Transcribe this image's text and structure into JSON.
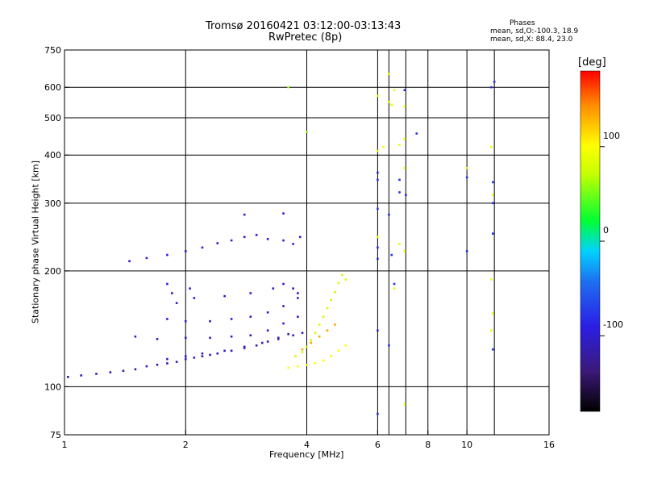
{
  "chart_data": {
    "type": "scatter",
    "title": "Tromsø 20160421 03:12:00-03:13:43",
    "subtitle": "RwPretec (8p)",
    "xlabel": "Frequency [MHz]",
    "ylabel": "Stationary phase Virtual Height [km]",
    "x_scale": "log",
    "y_scale": "log",
    "xlim": [
      1,
      16
    ],
    "ylim": [
      75,
      750
    ],
    "x_ticks": [
      1,
      2,
      4,
      6,
      8,
      10,
      16
    ],
    "x_tick_labels": [
      "1",
      "2",
      "4",
      "6",
      "8",
      "10",
      "16"
    ],
    "x_grid": [
      2,
      4,
      6,
      8,
      10
    ],
    "x_grid_extra": [
      6.4,
      7.05,
      11.7
    ],
    "y_ticks": [
      75,
      100,
      200,
      300,
      400,
      500,
      600,
      750
    ],
    "y_tick_labels": [
      "75",
      "100",
      "200",
      "300",
      "400",
      "500",
      "600",
      "750"
    ],
    "y_grid": [
      100,
      200,
      300,
      400,
      500,
      600
    ],
    "grid": true,
    "legend_title": "Phases",
    "legend_lines": [
      "mean, sd,O:-100.3, 18.9",
      "mean, sd,X: 88.4, 23.0"
    ],
    "colorbar": {
      "label": "[deg]",
      "min": -180,
      "max": 180,
      "ticks": [
        100,
        0,
        -100
      ],
      "tick_labels": [
        "100",
        "0",
        "-100"
      ]
    },
    "traces": [
      {
        "name": "",
        "phase": -110,
        "points": [
          [
            1.02,
            106
          ],
          [
            1.1,
            107
          ],
          [
            1.2,
            108
          ],
          [
            1.3,
            109
          ],
          [
            1.4,
            110
          ],
          [
            1.5,
            111
          ],
          [
            1.6,
            113
          ],
          [
            1.7,
            114
          ],
          [
            1.8,
            115
          ],
          [
            1.9,
            116
          ],
          [
            2.0,
            118
          ],
          [
            2.1,
            119
          ],
          [
            2.2,
            120
          ],
          [
            2.3,
            121
          ],
          [
            2.4,
            122
          ],
          [
            2.6,
            124
          ],
          [
            2.8,
            126
          ],
          [
            3.0,
            128
          ],
          [
            3.2,
            131
          ],
          [
            3.4,
            134
          ],
          [
            3.6,
            137
          ]
        ]
      },
      {
        "name": "",
        "phase": -105,
        "points": [
          [
            1.8,
            118
          ],
          [
            2.0,
            120
          ],
          [
            2.2,
            122
          ],
          [
            2.5,
            124
          ],
          [
            2.8,
            127
          ],
          [
            3.1,
            130
          ],
          [
            3.4,
            133
          ],
          [
            3.7,
            136
          ],
          [
            3.9,
            138
          ]
        ]
      },
      {
        "name": "",
        "phase": -100,
        "points": [
          [
            1.5,
            135
          ],
          [
            1.7,
            133
          ],
          [
            2.0,
            134
          ],
          [
            2.3,
            134
          ],
          [
            2.6,
            135
          ],
          [
            2.9,
            136
          ],
          [
            3.2,
            140
          ],
          [
            3.5,
            146
          ],
          [
            3.8,
            152
          ]
        ]
      },
      {
        "name": "",
        "phase": -100,
        "points": [
          [
            1.8,
            150
          ],
          [
            2.0,
            148
          ],
          [
            2.3,
            148
          ],
          [
            2.6,
            150
          ],
          [
            2.9,
            152
          ],
          [
            3.2,
            156
          ],
          [
            3.5,
            162
          ],
          [
            3.8,
            170
          ]
        ]
      },
      {
        "name": "",
        "phase": -100,
        "points": [
          [
            1.8,
            185
          ],
          [
            1.85,
            175
          ],
          [
            1.9,
            165
          ],
          [
            2.05,
            180
          ],
          [
            2.1,
            170
          ],
          [
            2.5,
            172
          ],
          [
            2.9,
            175
          ],
          [
            3.3,
            180
          ],
          [
            3.5,
            185
          ],
          [
            3.7,
            180
          ],
          [
            3.8,
            175
          ]
        ]
      },
      {
        "name": "",
        "phase": -95,
        "points": [
          [
            1.45,
            212
          ],
          [
            1.6,
            216
          ],
          [
            1.8,
            220
          ],
          [
            2.0,
            225
          ],
          [
            2.2,
            230
          ],
          [
            2.4,
            236
          ],
          [
            2.6,
            240
          ],
          [
            2.8,
            245
          ],
          [
            3.0,
            248
          ],
          [
            3.2,
            242
          ],
          [
            3.5,
            240
          ],
          [
            3.7,
            235
          ],
          [
            3.85,
            245
          ]
        ]
      },
      {
        "name": "",
        "phase": -100,
        "points": [
          [
            2.8,
            280
          ],
          [
            3.5,
            282
          ]
        ]
      },
      {
        "name": "",
        "phase": 75,
        "points": [
          [
            3.75,
            120
          ],
          [
            3.9,
            123
          ],
          [
            4.0,
            127
          ],
          [
            4.1,
            132
          ],
          [
            4.2,
            138
          ],
          [
            4.3,
            145
          ],
          [
            4.4,
            152
          ],
          [
            4.5,
            160
          ],
          [
            4.6,
            168
          ],
          [
            4.7,
            176
          ],
          [
            4.8,
            186
          ],
          [
            4.9,
            195
          ],
          [
            5.0,
            190
          ]
        ]
      },
      {
        "name": "",
        "phase": 100,
        "points": [
          [
            3.6,
            112
          ],
          [
            3.8,
            113
          ],
          [
            4.0,
            114
          ],
          [
            4.2,
            115
          ],
          [
            4.4,
            117
          ],
          [
            4.6,
            120
          ],
          [
            4.8,
            124
          ],
          [
            5.0,
            128
          ]
        ]
      },
      {
        "name": "",
        "phase": 135,
        "points": [
          [
            3.9,
            125
          ],
          [
            4.1,
            130
          ],
          [
            4.3,
            135
          ],
          [
            4.5,
            140
          ],
          [
            4.7,
            145
          ]
        ]
      },
      {
        "name": "",
        "phase": 60,
        "points": [
          [
            3.6,
            600
          ],
          [
            4.0,
            460
          ]
        ]
      },
      {
        "name": "",
        "phase": -80,
        "points": [
          [
            6.0,
            85
          ],
          [
            6.0,
            140
          ],
          [
            6.0,
            215
          ],
          [
            6.0,
            230
          ],
          [
            6.0,
            290
          ],
          [
            6.0,
            345
          ],
          [
            6.0,
            360
          ],
          [
            6.4,
            128
          ],
          [
            6.4,
            280
          ],
          [
            6.6,
            185
          ],
          [
            6.5,
            220
          ],
          [
            6.8,
            320
          ],
          [
            6.8,
            345
          ],
          [
            7.0,
            590
          ],
          [
            7.5,
            455
          ],
          [
            7.05,
            315
          ],
          [
            11.6,
            340
          ],
          [
            11.6,
            300
          ],
          [
            11.6,
            250
          ],
          [
            11.6,
            125
          ],
          [
            11.5,
            600
          ],
          [
            11.7,
            620
          ],
          [
            10,
            350
          ],
          [
            10,
            225
          ]
        ]
      },
      {
        "name": "",
        "phase": 90,
        "points": [
          [
            6.0,
            245
          ],
          [
            6.0,
            410
          ],
          [
            6.2,
            420
          ],
          [
            6.5,
            540
          ],
          [
            6.6,
            180
          ],
          [
            6.6,
            590
          ],
          [
            6.8,
            235
          ],
          [
            7.0,
            90
          ],
          [
            7.0,
            370
          ],
          [
            7.0,
            440
          ],
          [
            7.0,
            535
          ],
          [
            6.4,
            650
          ],
          [
            6.4,
            550
          ],
          [
            11.5,
            420
          ],
          [
            11.5,
            190
          ],
          [
            11.5,
            140
          ],
          [
            11.6,
            155
          ],
          [
            10,
            370
          ],
          [
            11.6,
            315
          ],
          [
            6.0,
            570
          ],
          [
            7.0,
            225
          ],
          [
            6.8,
            425
          ]
        ]
      }
    ]
  }
}
